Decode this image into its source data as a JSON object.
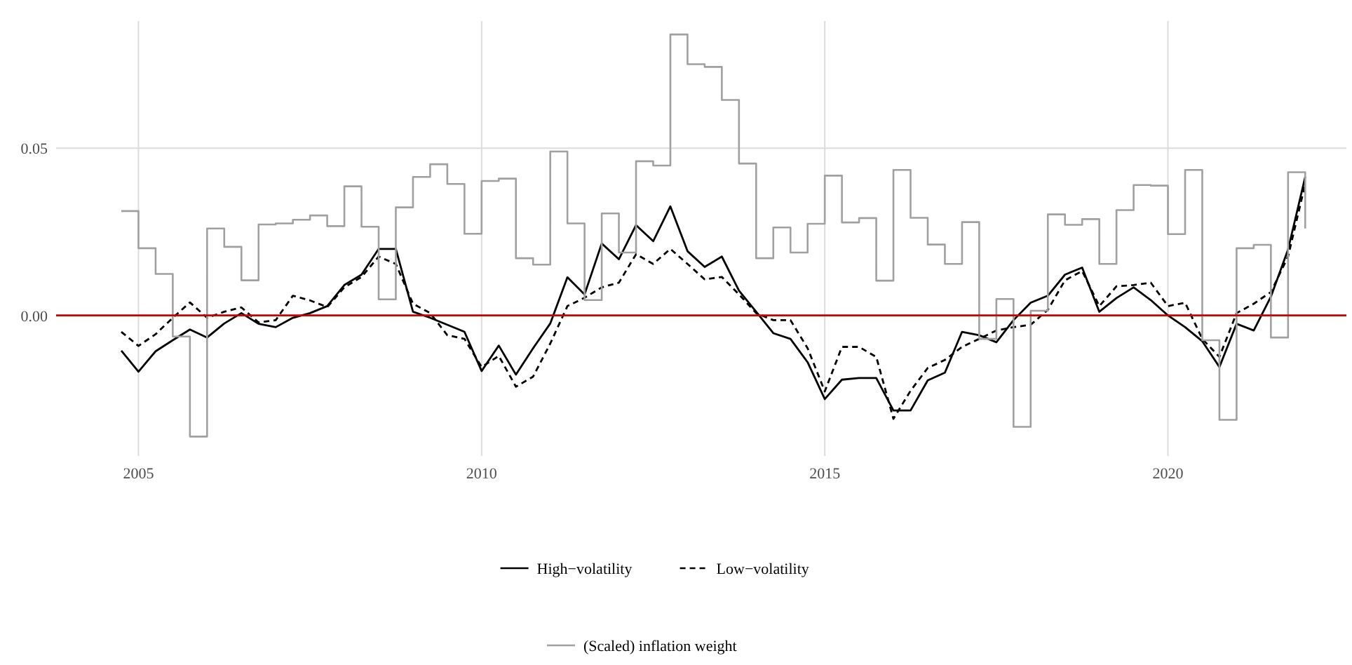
{
  "chart_data": {
    "type": "line",
    "x": [
      2004.75,
      2005,
      2005.25,
      2005.5,
      2005.75,
      2006,
      2006.25,
      2006.5,
      2006.75,
      2007,
      2007.25,
      2007.5,
      2007.75,
      2008,
      2008.25,
      2008.5,
      2008.75,
      2009,
      2009.25,
      2009.5,
      2009.75,
      2010,
      2010.25,
      2010.5,
      2010.75,
      2011,
      2011.25,
      2011.5,
      2011.75,
      2012,
      2012.25,
      2012.5,
      2012.75,
      2013,
      2013.25,
      2013.5,
      2013.75,
      2014,
      2014.25,
      2014.5,
      2014.75,
      2015,
      2015.25,
      2015.5,
      2015.75,
      2016,
      2016.25,
      2016.5,
      2016.75,
      2017,
      2017.25,
      2017.5,
      2017.75,
      2018,
      2018.25,
      2018.5,
      2018.75,
      2019,
      2019.25,
      2019.5,
      2019.75,
      2020,
      2020.25,
      2020.5,
      2020.75,
      2021,
      2021.25,
      2021.5,
      2021.75,
      2022
    ],
    "series": [
      {
        "name": "High−volatility",
        "color": "#000000",
        "line_style": "solid",
        "values": [
          -0.0105,
          -0.0168,
          -0.0107,
          -0.0074,
          -0.0042,
          -0.0066,
          -0.0024,
          0.0007,
          -0.0025,
          -0.0035,
          -0.0007,
          0.0007,
          0.0028,
          0.0091,
          0.0122,
          0.0199,
          0.0199,
          0.0011,
          -0.0007,
          -0.0028,
          -0.0049,
          -0.0166,
          -0.009,
          -0.0177,
          -0.0098,
          -0.0024,
          0.0114,
          0.0063,
          0.0215,
          0.0168,
          0.027,
          0.0222,
          0.0326,
          0.0192,
          0.0145,
          0.0176,
          0.0074,
          0.0011,
          -0.0053,
          -0.007,
          -0.014,
          -0.025,
          -0.0192,
          -0.0187,
          -0.0187,
          -0.0284,
          -0.0284,
          -0.0194,
          -0.0171,
          -0.0049,
          -0.0059,
          -0.008,
          -0.0014,
          0.0038,
          0.0059,
          0.0122,
          0.0143,
          0.0011,
          0.0052,
          0.0084,
          0.0046,
          0.0,
          -0.0035,
          -0.0077,
          -0.0154,
          -0.0025,
          -0.0045,
          0.0056,
          0.0197,
          0.0414
        ]
      },
      {
        "name": "Low−volatility",
        "color": "#000000",
        "line_style": "dashed",
        "values": [
          -0.0049,
          -0.0091,
          -0.0056,
          -0.0007,
          0.0039,
          -0.0007,
          0.0011,
          0.0024,
          -0.0021,
          -0.0014,
          0.0059,
          0.0045,
          0.0025,
          0.0084,
          0.0115,
          0.0176,
          0.0154,
          0.0035,
          0.0007,
          -0.0059,
          -0.007,
          -0.0154,
          -0.0121,
          -0.0213,
          -0.0183,
          -0.0084,
          0.0028,
          0.0053,
          0.0084,
          0.0098,
          0.0183,
          0.0154,
          0.0199,
          0.0154,
          0.0108,
          0.0115,
          0.0063,
          0.0007,
          -0.0014,
          -0.0014,
          -0.0098,
          -0.0227,
          -0.0094,
          -0.0094,
          -0.0124,
          -0.0309,
          -0.0225,
          -0.0157,
          -0.0133,
          -0.0094,
          -0.007,
          -0.0045,
          -0.0035,
          -0.0028,
          0.0017,
          0.0105,
          0.0133,
          0.0028,
          0.0087,
          0.0091,
          0.0098,
          0.0028,
          0.0038,
          -0.007,
          -0.0124,
          0.0007,
          0.0035,
          0.007,
          0.0176,
          0.0393
        ]
      },
      {
        "name": "(Scaled) inflation weight",
        "type": "step",
        "color": "#a0a0a0",
        "line_style": "solid",
        "values": [
          0.0312,
          0.0201,
          0.0124,
          -0.0063,
          -0.0362,
          0.026,
          0.0205,
          0.0105,
          0.0272,
          0.0275,
          0.0286,
          0.0299,
          0.0267,
          0.0386,
          0.0265,
          0.0048,
          0.0323,
          0.0414,
          0.0452,
          0.0393,
          0.0244,
          0.0402,
          0.0409,
          0.0171,
          0.0152,
          0.049,
          0.0275,
          0.0046,
          0.0305,
          0.0188,
          0.0461,
          0.0448,
          0.084,
          0.0751,
          0.0743,
          0.0644,
          0.0454,
          0.0171,
          0.0263,
          0.0188,
          0.0274,
          0.0418,
          0.0278,
          0.0291,
          0.0104,
          0.0435,
          0.0292,
          0.0212,
          0.0154,
          0.0279,
          -0.007,
          0.0049,
          -0.0333,
          0.0014,
          0.0302,
          0.0271,
          0.0288,
          0.0154,
          0.0315,
          0.039,
          0.0388,
          0.0243,
          0.0435,
          -0.0074,
          -0.0312,
          0.0201,
          0.0211,
          -0.0066,
          0.0428,
          0.026
        ]
      }
    ],
    "xlim": [
      2003.8,
      2022.6
    ],
    "xticks": [
      2005,
      2010,
      2015,
      2020
    ],
    "ylim": [
      -0.042,
      0.088
    ],
    "yticks": [
      {
        "value": 0,
        "label": "0.00"
      },
      {
        "value": 0.05,
        "label": "0.05"
      }
    ],
    "ref_lines": [
      {
        "axis": "y",
        "value": 0,
        "color": "#cc0000"
      }
    ],
    "grid": true,
    "legend": "bottom",
    "marker": "none"
  }
}
